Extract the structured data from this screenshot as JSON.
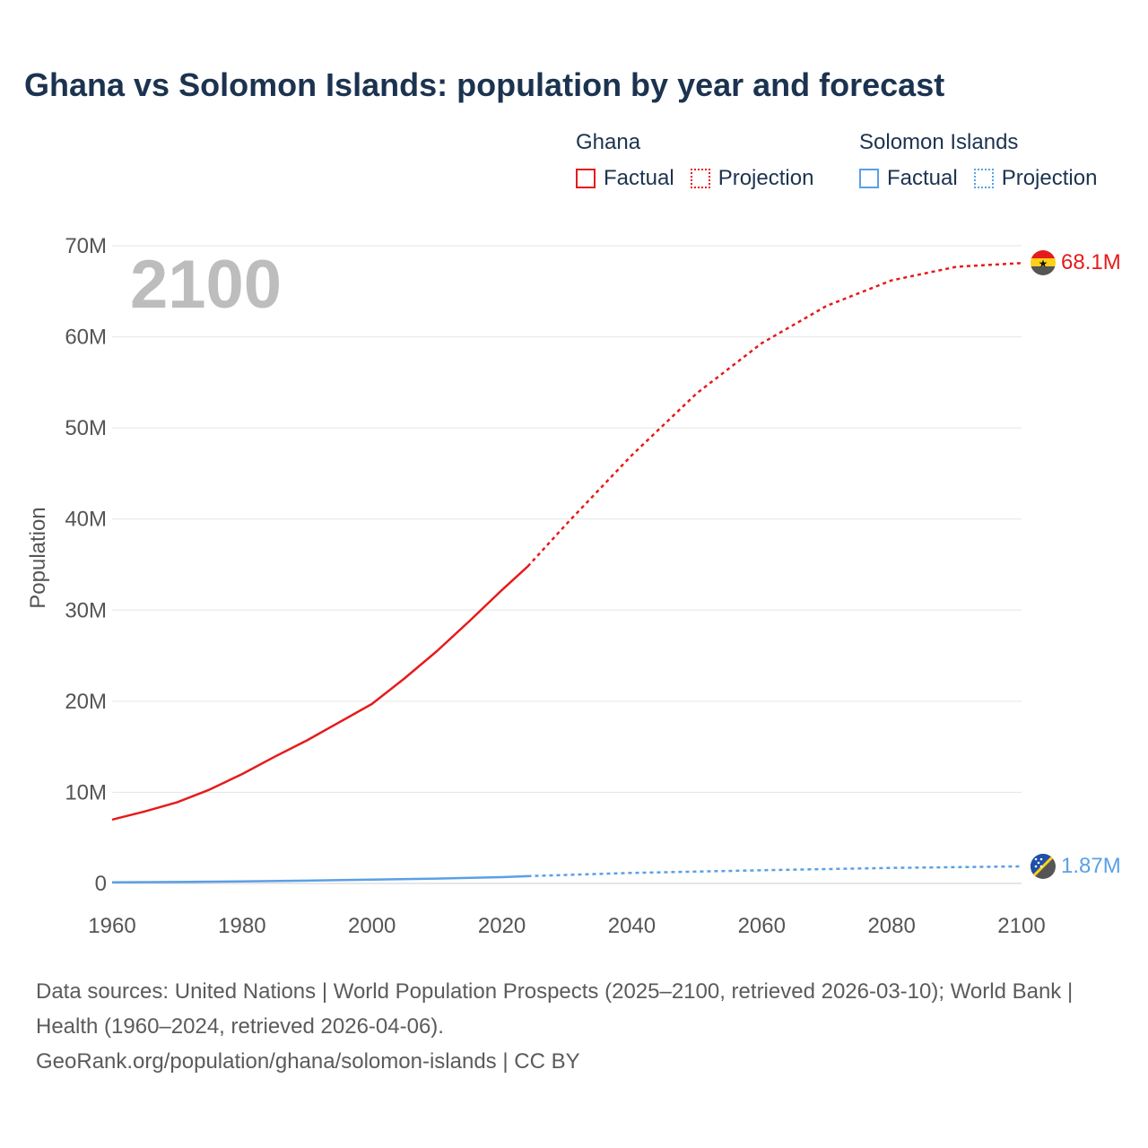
{
  "title": "Ghana vs Solomon Islands: population by year and forecast",
  "year_overlay": "2100",
  "colors": {
    "ghana": "#e51b1b",
    "solomon": "#5aa0e6",
    "text": "#1c3350",
    "axis": "#555555",
    "overlay": "#bdbdbd",
    "grid": "#e5e5e5"
  },
  "legend": {
    "groups": [
      {
        "name": "Ghana",
        "factual_label": "Factual",
        "projection_label": "Projection",
        "color": "#e51b1b"
      },
      {
        "name": "Solomon Islands",
        "factual_label": "Factual",
        "projection_label": "Projection",
        "color": "#5aa0e6"
      }
    ]
  },
  "chart_data": {
    "type": "line",
    "title": "Ghana vs Solomon Islands: population by year and forecast",
    "xlabel": "",
    "ylabel": "Population",
    "xlim": [
      1960,
      2100
    ],
    "ylim": [
      0,
      70000000
    ],
    "x_ticks": [
      1960,
      1980,
      2000,
      2020,
      2040,
      2060,
      2080,
      2100
    ],
    "y_ticks": [
      {
        "value": 0,
        "label": "0"
      },
      {
        "value": 10000000,
        "label": "10M"
      },
      {
        "value": 20000000,
        "label": "20M"
      },
      {
        "value": 30000000,
        "label": "30M"
      },
      {
        "value": 40000000,
        "label": "40M"
      },
      {
        "value": 50000000,
        "label": "50M"
      },
      {
        "value": 60000000,
        "label": "60M"
      },
      {
        "value": 70000000,
        "label": "70M"
      }
    ],
    "grid": true,
    "series": [
      {
        "name": "Ghana",
        "color": "#e51b1b",
        "end_label": "68.1M",
        "factual": {
          "x": [
            1960,
            1965,
            1970,
            1975,
            1980,
            1985,
            1990,
            1995,
            2000,
            2005,
            2010,
            2015,
            2020,
            2024
          ],
          "y": [
            7000000,
            7900000,
            8900000,
            10300000,
            12000000,
            13900000,
            15700000,
            17700000,
            19700000,
            22500000,
            25500000,
            28800000,
            32200000,
            34800000
          ]
        },
        "projection": {
          "x": [
            2024,
            2030,
            2040,
            2050,
            2060,
            2070,
            2080,
            2090,
            2100
          ],
          "y": [
            34800000,
            39500000,
            47000000,
            53800000,
            59300000,
            63400000,
            66200000,
            67700000,
            68100000
          ]
        }
      },
      {
        "name": "Solomon Islands",
        "color": "#5aa0e6",
        "end_label": "1.87M",
        "factual": {
          "x": [
            1960,
            1970,
            1980,
            1990,
            2000,
            2010,
            2020,
            2024
          ],
          "y": [
            120000,
            160000,
            230000,
            310000,
            410000,
            530000,
            690000,
            800000
          ]
        },
        "projection": {
          "x": [
            2024,
            2040,
            2060,
            2080,
            2100
          ],
          "y": [
            800000,
            1150000,
            1450000,
            1700000,
            1870000
          ]
        }
      }
    ]
  },
  "footer": {
    "sources": "Data sources: United Nations | World Population Prospects (2025–2100, retrieved 2026-03-10); World Bank | Health (1960–2024, retrieved 2026-04-06).",
    "credit": "GeoRank.org/population/ghana/solomon-islands | CC BY"
  }
}
